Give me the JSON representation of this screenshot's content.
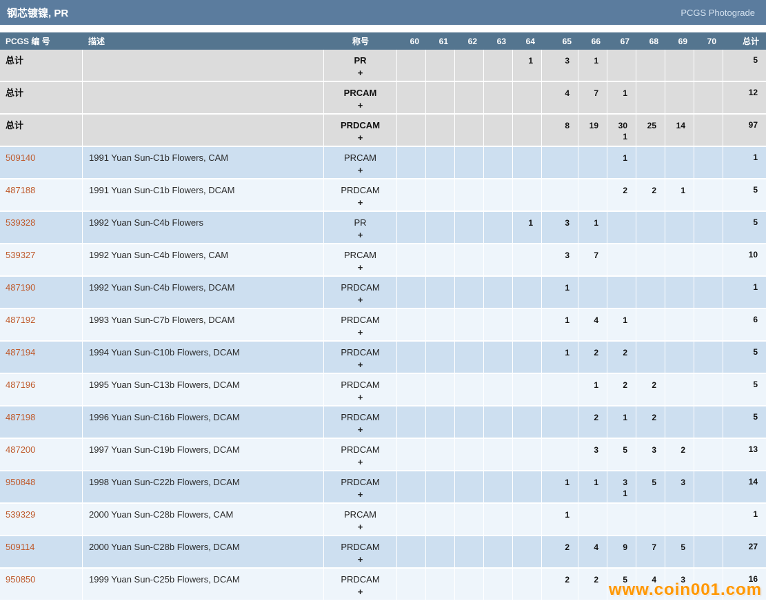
{
  "title_bar": {
    "title": "钢芯镀镍, PR",
    "photograde_link": "PCGS Photograde"
  },
  "table": {
    "headers": {
      "pcgs_no": "PCGS 编 号",
      "description": "描述",
      "designation": "称号",
      "grades": [
        "60",
        "61",
        "62",
        "63",
        "64",
        "65",
        "66",
        "67",
        "68",
        "69",
        "70"
      ],
      "total": "总计"
    },
    "plus_symbol": "+",
    "rows": [
      {
        "type": "total",
        "pcgs_no": "总计",
        "description": "",
        "designation": "PR",
        "grades": [
          "",
          "",
          "",
          "",
          "1",
          "3",
          "1",
          "",
          "",
          "",
          ""
        ],
        "total": "5"
      },
      {
        "type": "total",
        "pcgs_no": "总计",
        "description": "",
        "designation": "PRCAM",
        "grades": [
          "",
          "",
          "",
          "",
          "",
          "4",
          "7",
          "1",
          "",
          "",
          ""
        ],
        "total": "12"
      },
      {
        "type": "total",
        "pcgs_no": "总计",
        "description": "",
        "designation": "PRDCAM",
        "grades": [
          "",
          "",
          "",
          "",
          "",
          "8",
          "19",
          "30",
          "25",
          "14",
          ""
        ],
        "grades_plus": [
          "",
          "",
          "",
          "",
          "",
          "",
          "",
          "1",
          "",
          "",
          ""
        ],
        "total": "97"
      },
      {
        "type": "data",
        "pcgs_no": "509140",
        "description": "1991 Yuan Sun-C1b Flowers, CAM",
        "designation": "PRCAM",
        "grades": [
          "",
          "",
          "",
          "",
          "",
          "",
          "",
          "1",
          "",
          "",
          ""
        ],
        "total": "1"
      },
      {
        "type": "data",
        "pcgs_no": "487188",
        "description": "1991 Yuan Sun-C1b Flowers, DCAM",
        "designation": "PRDCAM",
        "grades": [
          "",
          "",
          "",
          "",
          "",
          "",
          "",
          "2",
          "2",
          "1",
          ""
        ],
        "total": "5"
      },
      {
        "type": "data",
        "pcgs_no": "539328",
        "description": "1992 Yuan Sun-C4b Flowers",
        "designation": "PR",
        "grades": [
          "",
          "",
          "",
          "",
          "1",
          "3",
          "1",
          "",
          "",
          "",
          ""
        ],
        "total": "5"
      },
      {
        "type": "data",
        "pcgs_no": "539327",
        "description": "1992 Yuan Sun-C4b Flowers, CAM",
        "designation": "PRCAM",
        "grades": [
          "",
          "",
          "",
          "",
          "",
          "3",
          "7",
          "",
          "",
          "",
          ""
        ],
        "total": "10"
      },
      {
        "type": "data",
        "pcgs_no": "487190",
        "description": "1992 Yuan Sun-C4b Flowers, DCAM",
        "designation": "PRDCAM",
        "grades": [
          "",
          "",
          "",
          "",
          "",
          "1",
          "",
          "",
          "",
          "",
          ""
        ],
        "total": "1"
      },
      {
        "type": "data",
        "pcgs_no": "487192",
        "description": "1993 Yuan Sun-C7b Flowers, DCAM",
        "designation": "PRDCAM",
        "grades": [
          "",
          "",
          "",
          "",
          "",
          "1",
          "4",
          "1",
          "",
          "",
          ""
        ],
        "total": "6"
      },
      {
        "type": "data",
        "pcgs_no": "487194",
        "description": "1994 Yuan Sun-C10b Flowers, DCAM",
        "designation": "PRDCAM",
        "grades": [
          "",
          "",
          "",
          "",
          "",
          "1",
          "2",
          "2",
          "",
          "",
          ""
        ],
        "total": "5"
      },
      {
        "type": "data",
        "pcgs_no": "487196",
        "description": "1995 Yuan Sun-C13b Flowers, DCAM",
        "designation": "PRDCAM",
        "grades": [
          "",
          "",
          "",
          "",
          "",
          "",
          "1",
          "2",
          "2",
          "",
          ""
        ],
        "total": "5"
      },
      {
        "type": "data",
        "pcgs_no": "487198",
        "description": "1996 Yuan Sun-C16b Flowers, DCAM",
        "designation": "PRDCAM",
        "grades": [
          "",
          "",
          "",
          "",
          "",
          "",
          "2",
          "1",
          "2",
          "",
          ""
        ],
        "total": "5"
      },
      {
        "type": "data",
        "pcgs_no": "487200",
        "description": "1997 Yuan Sun-C19b Flowers, DCAM",
        "designation": "PRDCAM",
        "grades": [
          "",
          "",
          "",
          "",
          "",
          "",
          "3",
          "5",
          "3",
          "2",
          ""
        ],
        "total": "13"
      },
      {
        "type": "data",
        "pcgs_no": "950848",
        "description": "1998 Yuan Sun-C22b Flowers, DCAM",
        "designation": "PRDCAM",
        "grades": [
          "",
          "",
          "",
          "",
          "",
          "1",
          "1",
          "3",
          "5",
          "3",
          ""
        ],
        "grades_plus": [
          "",
          "",
          "",
          "",
          "",
          "",
          "",
          "1",
          "",
          "",
          ""
        ],
        "total": "14"
      },
      {
        "type": "data",
        "pcgs_no": "539329",
        "description": "2000 Yuan Sun-C28b Flowers, CAM",
        "designation": "PRCAM",
        "grades": [
          "",
          "",
          "",
          "",
          "",
          "1",
          "",
          "",
          "",
          "",
          ""
        ],
        "total": "1"
      },
      {
        "type": "data",
        "pcgs_no": "509114",
        "description": "2000 Yuan Sun-C28b Flowers, DCAM",
        "designation": "PRDCAM",
        "grades": [
          "",
          "",
          "",
          "",
          "",
          "2",
          "4",
          "9",
          "7",
          "5",
          ""
        ],
        "total": "27"
      },
      {
        "type": "data",
        "pcgs_no": "950850",
        "description": "1999 Yuan Sun-C25b Flowers, DCAM",
        "designation": "PRDCAM",
        "grades": [
          "",
          "",
          "",
          "",
          "",
          "2",
          "2",
          "5",
          "4",
          "3",
          ""
        ],
        "total": "16"
      }
    ]
  },
  "watermark": "www.coin001.com"
}
